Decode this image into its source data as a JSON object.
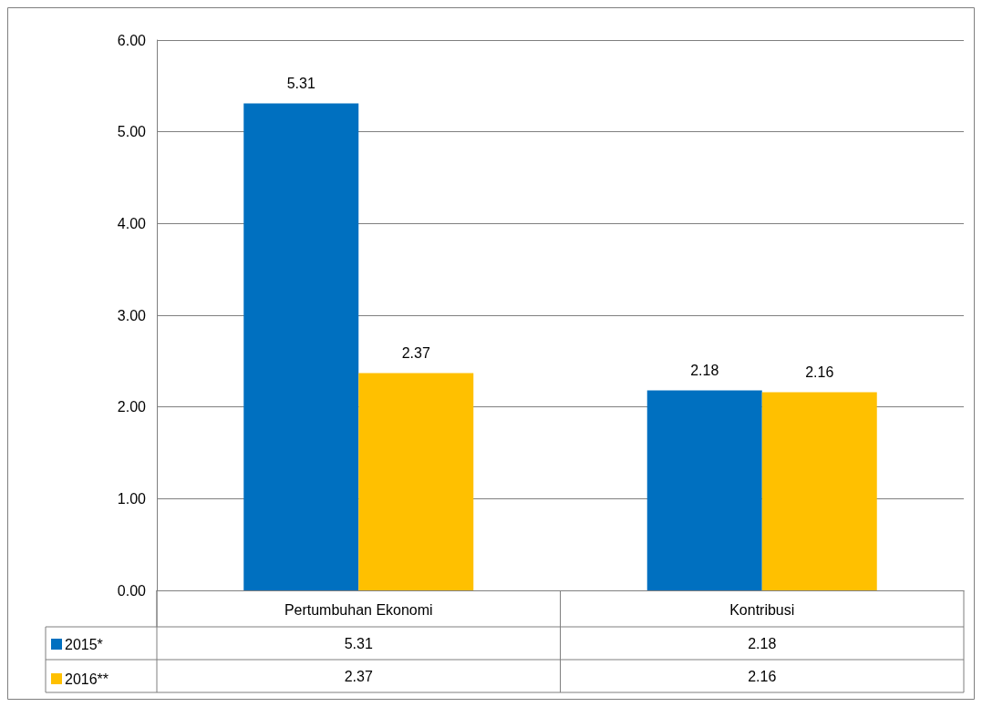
{
  "chart_data": {
    "type": "bar",
    "categories": [
      "Pertumbuhan Ekonomi",
      "Kontribusi"
    ],
    "series": [
      {
        "name": "2015*",
        "color": "#0070c0",
        "values": [
          5.31,
          2.18
        ],
        "value_labels": [
          "5.31",
          "2.18"
        ]
      },
      {
        "name": "2016**",
        "color": "#ffc000",
        "values": [
          2.37,
          2.16
        ],
        "value_labels": [
          "2.37",
          "2.16"
        ]
      }
    ],
    "ylim": [
      0,
      6
    ],
    "yticks": [
      {
        "value": 0,
        "label": "0.00"
      },
      {
        "value": 1,
        "label": "1.00"
      },
      {
        "value": 2,
        "label": "2.00"
      },
      {
        "value": 3,
        "label": "3.00"
      },
      {
        "value": 4,
        "label": "4.00"
      },
      {
        "value": 5,
        "label": "5.00"
      },
      {
        "value": 6,
        "label": "6.00"
      }
    ],
    "annotations": [
      "5.31",
      "2.18",
      "2.37",
      "2.16"
    ],
    "grid": "y",
    "legend": "bottom left",
    "data_labels": true
  }
}
